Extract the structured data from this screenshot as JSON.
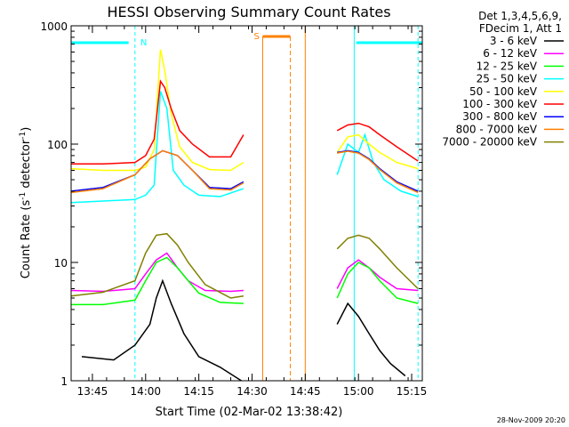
{
  "chart_data": {
    "type": "line",
    "title": "HESSI Observing Summary Count Rates",
    "xlabel": "Start Time (02-Mar-02 13:38:42)",
    "ylabel_main": "Count Rate (s",
    "ylabel_exp1": "-1",
    "ylabel_mid": " detector",
    "ylabel_exp2": "-1",
    "ylabel_end": ")",
    "yscale": "log",
    "ylim": [
      1,
      1000
    ],
    "xlim": [
      13.65,
      15.3
    ],
    "x_tick_values": [
      13.75,
      14.0,
      14.25,
      14.5,
      14.75,
      15.0,
      15.25
    ],
    "x_tick_labels": [
      "13:45",
      "14:00",
      "14:15",
      "14:30",
      "14:45",
      "15:00",
      "15:15"
    ],
    "y_tick_values": [
      1,
      10,
      100,
      1000
    ],
    "y_tick_labels": [
      "1",
      "10",
      "100",
      "1000"
    ],
    "legend_header": [
      "Det 1,3,4,5,6,9,",
      "FDecim 1, Att 1"
    ],
    "legend_position": "right",
    "timestamp": "28-Nov-2009 20:20",
    "annotations": {
      "night_label": "N",
      "saa_label": "S"
    },
    "series": [
      {
        "name": "3 - 6 keV",
        "color": "#000000",
        "values": [
          [
            13.7,
            1.6
          ],
          [
            13.85,
            1.5
          ],
          [
            13.95,
            2.0
          ],
          [
            14.02,
            3.0
          ],
          [
            14.05,
            5.0
          ],
          [
            14.08,
            7.0
          ],
          [
            14.12,
            4.5
          ],
          [
            14.18,
            2.5
          ],
          [
            14.25,
            1.6
          ],
          [
            14.35,
            1.3
          ],
          [
            14.45,
            1.0
          ]
        ]
      },
      {
        "name": "6 - 12 keV",
        "color": "#ff00ff",
        "values": [
          [
            13.65,
            5.8
          ],
          [
            13.8,
            5.7
          ],
          [
            13.95,
            6.0
          ],
          [
            14.0,
            8.0
          ],
          [
            14.05,
            10.5
          ],
          [
            14.1,
            12.0
          ],
          [
            14.15,
            9.0
          ],
          [
            14.2,
            7.0
          ],
          [
            14.28,
            5.8
          ],
          [
            14.4,
            5.7
          ],
          [
            14.46,
            5.8
          ]
        ]
      },
      {
        "name": "12 - 25 keV",
        "color": "#00ff00",
        "values": [
          [
            13.65,
            4.4
          ],
          [
            13.8,
            4.4
          ],
          [
            13.95,
            4.8
          ],
          [
            14.0,
            7.0
          ],
          [
            14.05,
            10.0
          ],
          [
            14.1,
            11.0
          ],
          [
            14.15,
            9.0
          ],
          [
            14.2,
            7.0
          ],
          [
            14.25,
            5.5
          ],
          [
            14.35,
            4.6
          ],
          [
            14.46,
            4.5
          ]
        ]
      },
      {
        "name": "25 - 50 keV",
        "color": "#00ffff",
        "values": [
          [
            13.65,
            32
          ],
          [
            13.8,
            33
          ],
          [
            13.95,
            34
          ],
          [
            14.0,
            37
          ],
          [
            14.04,
            45
          ],
          [
            14.07,
            280
          ],
          [
            14.1,
            200
          ],
          [
            14.13,
            60
          ],
          [
            14.18,
            45
          ],
          [
            14.25,
            37
          ],
          [
            14.35,
            36
          ],
          [
            14.46,
            42
          ]
        ]
      },
      {
        "name": "50 - 100 keV",
        "color": "#ffff00",
        "values": [
          [
            13.65,
            62
          ],
          [
            13.8,
            60
          ],
          [
            13.95,
            60
          ],
          [
            14.0,
            64
          ],
          [
            14.04,
            90
          ],
          [
            14.07,
            630
          ],
          [
            14.09,
            420
          ],
          [
            14.12,
            180
          ],
          [
            14.16,
            95
          ],
          [
            14.22,
            70
          ],
          [
            14.3,
            61
          ],
          [
            14.4,
            60
          ],
          [
            14.46,
            70
          ]
        ]
      },
      {
        "name": "100 - 300 keV",
        "color": "#ff0000",
        "values": [
          [
            13.65,
            68
          ],
          [
            13.8,
            68
          ],
          [
            13.95,
            70
          ],
          [
            14.0,
            80
          ],
          [
            14.04,
            110
          ],
          [
            14.07,
            340
          ],
          [
            14.09,
            300
          ],
          [
            14.12,
            200
          ],
          [
            14.16,
            130
          ],
          [
            14.22,
            100
          ],
          [
            14.3,
            78
          ],
          [
            14.4,
            78
          ],
          [
            14.46,
            120
          ]
        ]
      },
      {
        "name": "300 - 800 keV",
        "color": "#0000ff",
        "values": [
          [
            13.65,
            40
          ],
          [
            13.8,
            43
          ],
          [
            13.95,
            55
          ],
          [
            14.02,
            75
          ],
          [
            14.08,
            88
          ],
          [
            14.15,
            80
          ],
          [
            14.22,
            60
          ],
          [
            14.3,
            43
          ],
          [
            14.4,
            42
          ],
          [
            14.46,
            48
          ]
        ]
      },
      {
        "name": "800 - 7000 keV",
        "color": "#ff8000",
        "values": [
          [
            13.65,
            39
          ],
          [
            13.8,
            42
          ],
          [
            13.95,
            55
          ],
          [
            14.02,
            75
          ],
          [
            14.08,
            88
          ],
          [
            14.15,
            80
          ],
          [
            14.22,
            60
          ],
          [
            14.3,
            42
          ],
          [
            14.4,
            41
          ],
          [
            14.46,
            47
          ]
        ]
      },
      {
        "name": "7000 - 20000 keV",
        "color": "#808000",
        "values": [
          [
            13.65,
            5.2
          ],
          [
            13.8,
            5.6
          ],
          [
            13.95,
            7.0
          ],
          [
            14.0,
            12.0
          ],
          [
            14.05,
            17.0
          ],
          [
            14.1,
            17.5
          ],
          [
            14.15,
            14.0
          ],
          [
            14.2,
            10.0
          ],
          [
            14.28,
            6.5
          ],
          [
            14.4,
            5.0
          ],
          [
            14.46,
            5.2
          ]
        ]
      }
    ],
    "series_after_gap": [
      {
        "name": "3 - 6 keV",
        "values": [
          [
            14.9,
            3.0
          ],
          [
            14.95,
            4.5
          ],
          [
            15.0,
            3.5
          ],
          [
            15.05,
            2.5
          ],
          [
            15.1,
            1.8
          ],
          [
            15.15,
            1.4
          ],
          [
            15.22,
            1.1
          ]
        ]
      },
      {
        "name": "6 - 12 keV",
        "values": [
          [
            14.9,
            6.0
          ],
          [
            14.95,
            9.0
          ],
          [
            15.0,
            10.5
          ],
          [
            15.05,
            9.0
          ],
          [
            15.1,
            7.5
          ],
          [
            15.18,
            6.0
          ],
          [
            15.28,
            5.8
          ]
        ]
      },
      {
        "name": "12 - 25 keV",
        "values": [
          [
            14.9,
            5.0
          ],
          [
            14.95,
            8.0
          ],
          [
            15.0,
            10.0
          ],
          [
            15.05,
            9.0
          ],
          [
            15.1,
            7.0
          ],
          [
            15.18,
            5.0
          ],
          [
            15.28,
            4.5
          ]
        ]
      },
      {
        "name": "25 - 50 keV",
        "values": [
          [
            14.9,
            55
          ],
          [
            14.95,
            100
          ],
          [
            15.0,
            85
          ],
          [
            15.03,
            120
          ],
          [
            15.07,
            70
          ],
          [
            15.12,
            50
          ],
          [
            15.2,
            40
          ],
          [
            15.28,
            36
          ]
        ]
      },
      {
        "name": "50 - 100 keV",
        "values": [
          [
            14.9,
            85
          ],
          [
            14.95,
            115
          ],
          [
            15.0,
            120
          ],
          [
            15.05,
            100
          ],
          [
            15.1,
            85
          ],
          [
            15.18,
            70
          ],
          [
            15.28,
            62
          ]
        ]
      },
      {
        "name": "100 - 300 keV",
        "values": [
          [
            14.9,
            130
          ],
          [
            14.95,
            145
          ],
          [
            15.0,
            150
          ],
          [
            15.05,
            140
          ],
          [
            15.1,
            120
          ],
          [
            15.18,
            95
          ],
          [
            15.28,
            72
          ]
        ]
      },
      {
        "name": "300 - 800 keV",
        "values": [
          [
            14.9,
            85
          ],
          [
            14.95,
            88
          ],
          [
            15.0,
            85
          ],
          [
            15.05,
            75
          ],
          [
            15.1,
            62
          ],
          [
            15.18,
            48
          ],
          [
            15.28,
            40
          ]
        ]
      },
      {
        "name": "800 - 7000 keV",
        "values": [
          [
            14.9,
            84
          ],
          [
            14.95,
            87
          ],
          [
            15.0,
            84
          ],
          [
            15.05,
            74
          ],
          [
            15.1,
            61
          ],
          [
            15.18,
            47
          ],
          [
            15.28,
            39
          ]
        ]
      },
      {
        "name": "7000 - 20000 keV",
        "values": [
          [
            14.9,
            13
          ],
          [
            14.95,
            16
          ],
          [
            15.0,
            17
          ],
          [
            15.05,
            16
          ],
          [
            15.1,
            13
          ],
          [
            15.18,
            9
          ],
          [
            15.28,
            6
          ]
        ]
      }
    ]
  }
}
